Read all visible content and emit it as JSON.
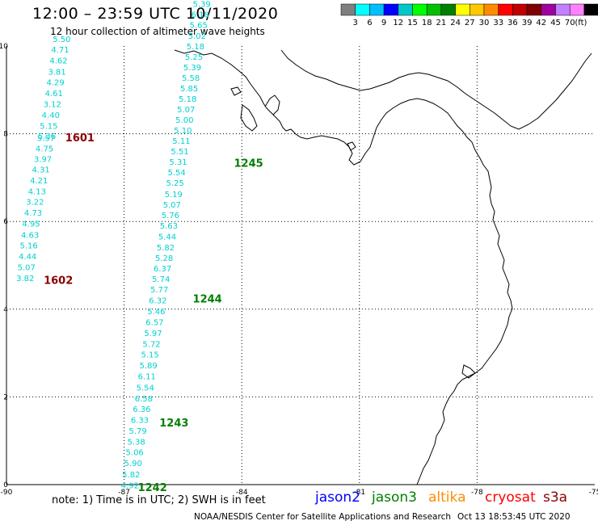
{
  "header": {
    "title": "12:00 – 23:59 UTC 10/11/2020",
    "subtitle": "12 hour collection of altimeter wave heights"
  },
  "legend": {
    "unit": "(ft)",
    "bins": [
      {
        "label": "",
        "color": "#7f7f7f"
      },
      {
        "label": "3",
        "color": "#00ffff"
      },
      {
        "label": "6",
        "color": "#00bfff"
      },
      {
        "label": "9",
        "color": "#0000ff"
      },
      {
        "label": "12",
        "color": "#00c8c8"
      },
      {
        "label": "15",
        "color": "#00ff00"
      },
      {
        "label": "18",
        "color": "#00c000"
      },
      {
        "label": "21",
        "color": "#008000"
      },
      {
        "label": "24",
        "color": "#ffff00"
      },
      {
        "label": "27",
        "color": "#ffc800"
      },
      {
        "label": "30",
        "color": "#ff8c00"
      },
      {
        "label": "33",
        "color": "#ff0000"
      },
      {
        "label": "36",
        "color": "#c00000"
      },
      {
        "label": "39",
        "color": "#800000"
      },
      {
        "label": "42",
        "color": "#a000a0"
      },
      {
        "label": "45",
        "color": "#c080ff"
      },
      {
        "label": "70",
        "color": "#ff80ff"
      },
      {
        "label": "",
        "color": "#000000"
      }
    ]
  },
  "map": {
    "lon_range": [
      -90,
      -75
    ],
    "lat_range": [
      0,
      10
    ],
    "lon_ticks": [
      "-90",
      "-87",
      "-84",
      "-81",
      "-78",
      "-75"
    ],
    "lat_ticks": [
      "0",
      "2",
      "4",
      "6",
      "8",
      "10"
    ],
    "track_color": "#00d0d0",
    "tracks": [
      {
        "name": "1602/1601",
        "points": [
          {
            "lon": -89.75,
            "lat": 4.64,
            "v": "3.82"
          },
          {
            "lon": -89.72,
            "lat": 4.89,
            "v": "5.07"
          },
          {
            "lon": -89.69,
            "lat": 5.14,
            "v": "4.44"
          },
          {
            "lon": -89.66,
            "lat": 5.39,
            "v": "5.16"
          },
          {
            "lon": -89.63,
            "lat": 5.63,
            "v": "4.63"
          },
          {
            "lon": -89.6,
            "lat": 5.88,
            "v": "4.95"
          },
          {
            "lon": -89.55,
            "lat": 6.13,
            "v": "4.73"
          },
          {
            "lon": -89.5,
            "lat": 6.38,
            "v": "3.22"
          },
          {
            "lon": -89.45,
            "lat": 6.62,
            "v": "4.13"
          },
          {
            "lon": -89.4,
            "lat": 6.87,
            "v": "4.21"
          },
          {
            "lon": -89.35,
            "lat": 7.12,
            "v": "4.31"
          },
          {
            "lon": -89.3,
            "lat": 7.36,
            "v": "3.97"
          },
          {
            "lon": -89.26,
            "lat": 7.6,
            "v": "4.75"
          },
          {
            "lon": -89.22,
            "lat": 7.84,
            "v": "5.57"
          },
          {
            "lon": -89.2,
            "lat": 7.88,
            "v": "5.36"
          },
          {
            "lon": -89.15,
            "lat": 8.11,
            "v": "5.15"
          },
          {
            "lon": -89.1,
            "lat": 8.36,
            "v": "4.40"
          },
          {
            "lon": -89.06,
            "lat": 8.61,
            "v": "3.12"
          },
          {
            "lon": -89.02,
            "lat": 8.86,
            "v": "4.61"
          },
          {
            "lon": -88.98,
            "lat": 9.11,
            "v": "4.29"
          },
          {
            "lon": -88.94,
            "lat": 9.35,
            "v": "3.81"
          },
          {
            "lon": -88.9,
            "lat": 9.6,
            "v": "4.62"
          },
          {
            "lon": -88.86,
            "lat": 9.85,
            "v": "4.71"
          },
          {
            "lon": -88.82,
            "lat": 10.09,
            "v": "5.50"
          }
        ]
      },
      {
        "name": "1242-1245",
        "points": [
          {
            "lon": -87.08,
            "lat": -0.08,
            "v": "4.92"
          },
          {
            "lon": -87.05,
            "lat": 0.17,
            "v": "5.82"
          },
          {
            "lon": -87.0,
            "lat": 0.42,
            "v": "5.90"
          },
          {
            "lon": -86.96,
            "lat": 0.67,
            "v": "5.06"
          },
          {
            "lon": -86.92,
            "lat": 0.91,
            "v": "5.38"
          },
          {
            "lon": -86.88,
            "lat": 1.16,
            "v": "5.79"
          },
          {
            "lon": -86.83,
            "lat": 1.41,
            "v": "6.33"
          },
          {
            "lon": -86.78,
            "lat": 1.66,
            "v": "6.36"
          },
          {
            "lon": -86.73,
            "lat": 1.9,
            "v": "6.58"
          },
          {
            "lon": -86.69,
            "lat": 2.15,
            "v": "5.54"
          },
          {
            "lon": -86.65,
            "lat": 2.4,
            "v": "6.11"
          },
          {
            "lon": -86.61,
            "lat": 2.65,
            "v": "5.89"
          },
          {
            "lon": -86.57,
            "lat": 2.9,
            "v": "5.15"
          },
          {
            "lon": -86.53,
            "lat": 3.14,
            "v": "5.72"
          },
          {
            "lon": -86.49,
            "lat": 3.39,
            "v": "5.97"
          },
          {
            "lon": -86.45,
            "lat": 3.64,
            "v": "6.57"
          },
          {
            "lon": -86.41,
            "lat": 3.89,
            "v": "5.46"
          },
          {
            "lon": -86.37,
            "lat": 4.13,
            "v": "6.32"
          },
          {
            "lon": -86.33,
            "lat": 4.38,
            "v": "5.77"
          },
          {
            "lon": -86.29,
            "lat": 4.62,
            "v": "5.74"
          },
          {
            "lon": -86.25,
            "lat": 4.86,
            "v": "6.37"
          },
          {
            "lon": -86.21,
            "lat": 5.1,
            "v": "5.28"
          },
          {
            "lon": -86.17,
            "lat": 5.34,
            "v": "5.82"
          },
          {
            "lon": -86.13,
            "lat": 5.59,
            "v": "5.44"
          },
          {
            "lon": -86.09,
            "lat": 5.84,
            "v": "5.63"
          },
          {
            "lon": -86.05,
            "lat": 6.08,
            "v": "5.76"
          },
          {
            "lon": -86.01,
            "lat": 6.32,
            "v": "5.07"
          },
          {
            "lon": -85.97,
            "lat": 6.56,
            "v": "5.19"
          },
          {
            "lon": -85.93,
            "lat": 6.81,
            "v": "5.25"
          },
          {
            "lon": -85.89,
            "lat": 7.05,
            "v": "5.54"
          },
          {
            "lon": -85.85,
            "lat": 7.29,
            "v": "5.31"
          },
          {
            "lon": -85.81,
            "lat": 7.53,
            "v": "5.51"
          },
          {
            "lon": -85.77,
            "lat": 7.77,
            "v": "5.11"
          },
          {
            "lon": -85.73,
            "lat": 8.01,
            "v": "5.10"
          },
          {
            "lon": -85.69,
            "lat": 8.25,
            "v": "5.00"
          },
          {
            "lon": -85.65,
            "lat": 8.49,
            "v": "5.07"
          },
          {
            "lon": -85.61,
            "lat": 8.73,
            "v": "5.18"
          },
          {
            "lon": -85.57,
            "lat": 8.97,
            "v": "5.85"
          },
          {
            "lon": -85.53,
            "lat": 9.21,
            "v": "5.58"
          },
          {
            "lon": -85.49,
            "lat": 9.45,
            "v": "5.39"
          },
          {
            "lon": -85.45,
            "lat": 9.69,
            "v": "5.25"
          },
          {
            "lon": -85.41,
            "lat": 9.93,
            "v": "5.18"
          },
          {
            "lon": -85.37,
            "lat": 10.17,
            "v": "5.02"
          },
          {
            "lon": -85.33,
            "lat": 10.41,
            "v": "5.65"
          },
          {
            "lon": -85.29,
            "lat": 10.65,
            "v": "6.18"
          },
          {
            "lon": -85.25,
            "lat": 10.89,
            "v": "5.39"
          }
        ]
      }
    ],
    "pass_labels": [
      {
        "text": "1601",
        "lon": -88.5,
        "lat": 7.83,
        "color": "#8b0000"
      },
      {
        "text": "1602",
        "lon": -89.05,
        "lat": 4.58,
        "color": "#8b0000"
      },
      {
        "text": "1245",
        "lon": -84.2,
        "lat": 7.25,
        "color": "#008000"
      },
      {
        "text": "1244",
        "lon": -85.25,
        "lat": 4.15,
        "color": "#008000"
      },
      {
        "text": "1243",
        "lon": -86.1,
        "lat": 1.33,
        "color": "#008000"
      },
      {
        "text": "1242",
        "lon": -86.65,
        "lat": -0.15,
        "color": "#008000"
      }
    ]
  },
  "footer": {
    "note": "note: 1) Time is in UTC; 2) SWH is in feet",
    "satellites": [
      {
        "label": "jason2",
        "color": "#0000ff"
      },
      {
        "label": "jason3",
        "color": "#008000"
      },
      {
        "label": "altika",
        "color": "#ff8c00"
      },
      {
        "label": "cryosat",
        "color": "#ff0000"
      },
      {
        "label": "s3a",
        "color": "#8b0000"
      }
    ],
    "credit": "NOAA/NESDIS Center for Satellite Applications and Research",
    "timestamp": "Oct 13 18:53:45 UTC 2020"
  }
}
